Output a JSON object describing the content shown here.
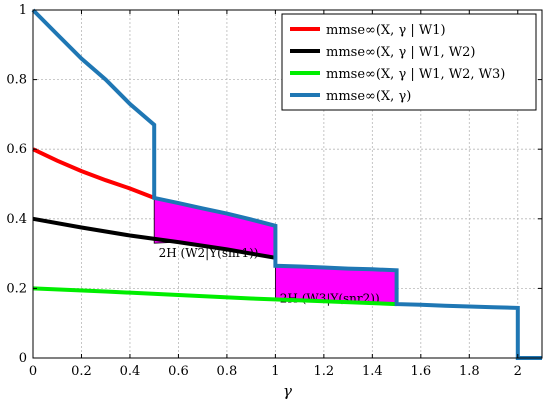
{
  "chart_data": {
    "type": "line",
    "title": "",
    "xlabel": "γ",
    "ylabel": "",
    "xlim": [
      0,
      2.1
    ],
    "ylim": [
      0,
      1
    ],
    "x_ticks": [
      "0",
      "0.2",
      "0.4",
      "0.6",
      "0.8",
      "1",
      "1.2",
      "1.4",
      "1.6",
      "1.8",
      "2"
    ],
    "y_ticks": [
      "0",
      "0.2",
      "0.4",
      "0.6",
      "0.8",
      "1"
    ],
    "grid": true,
    "legend_position": "top-right",
    "series": [
      {
        "name": "mmse∞(X, γ | W1)",
        "color": "#ff0000",
        "points": [
          [
            0,
            0.6
          ],
          [
            0.1,
            0.567
          ],
          [
            0.2,
            0.537
          ],
          [
            0.3,
            0.511
          ],
          [
            0.4,
            0.487
          ],
          [
            0.5,
            0.46
          ]
        ]
      },
      {
        "name": "mmse∞(X, γ | W1, W2)",
        "color": "#000000",
        "points": [
          [
            0,
            0.4
          ],
          [
            0.2,
            0.375
          ],
          [
            0.4,
            0.352
          ],
          [
            0.6,
            0.333
          ],
          [
            0.8,
            0.312
          ],
          [
            1.0,
            0.288
          ]
        ]
      },
      {
        "name": "mmse∞(X, γ | W1, W2, W3)",
        "color": "#00ee00",
        "points": [
          [
            0,
            0.2
          ],
          [
            0.3,
            0.191
          ],
          [
            0.6,
            0.181
          ],
          [
            0.9,
            0.171
          ],
          [
            1.2,
            0.163
          ],
          [
            1.5,
            0.155
          ]
        ]
      },
      {
        "name": "mmse∞(X, γ)",
        "color": "#1f77b4",
        "points": [
          [
            0,
            1.0
          ],
          [
            0.1,
            0.93
          ],
          [
            0.2,
            0.86
          ],
          [
            0.3,
            0.8
          ],
          [
            0.4,
            0.73
          ],
          [
            0.5,
            0.67
          ],
          [
            0.5,
            0.46
          ],
          [
            0.6,
            0.445
          ],
          [
            0.7,
            0.43
          ],
          [
            0.8,
            0.415
          ],
          [
            0.9,
            0.398
          ],
          [
            1.0,
            0.38
          ],
          [
            1.0,
            0.265
          ],
          [
            1.1,
            0.263
          ],
          [
            1.2,
            0.26
          ],
          [
            1.3,
            0.257
          ],
          [
            1.4,
            0.255
          ],
          [
            1.5,
            0.252
          ],
          [
            1.5,
            0.155
          ],
          [
            1.6,
            0.153
          ],
          [
            1.7,
            0.15
          ],
          [
            1.8,
            0.148
          ],
          [
            1.9,
            0.146
          ],
          [
            2.0,
            0.144
          ],
          [
            2.0,
            0.0
          ],
          [
            2.1,
            0.0
          ]
        ]
      }
    ],
    "regions": [
      {
        "label": "2H (W2|Y(snr1))",
        "color": "#ff00ff",
        "upper": [
          [
            0.5,
            0.46
          ],
          [
            0.6,
            0.445
          ],
          [
            0.7,
            0.43
          ],
          [
            0.8,
            0.415
          ],
          [
            0.9,
            0.398
          ],
          [
            1.0,
            0.38
          ]
        ],
        "lower": [
          [
            0.5,
            0.33
          ],
          [
            0.6,
            0.333
          ],
          [
            0.8,
            0.312
          ],
          [
            1.0,
            0.288
          ]
        ],
        "label_at": [
          0.51,
          0.29
        ]
      },
      {
        "label": "2H (W3|Y(snr2))",
        "color": "#ff00ff",
        "upper": [
          [
            1.0,
            0.265
          ],
          [
            1.2,
            0.26
          ],
          [
            1.4,
            0.255
          ],
          [
            1.5,
            0.252
          ]
        ],
        "lower": [
          [
            1.0,
            0.171
          ],
          [
            1.2,
            0.163
          ],
          [
            1.5,
            0.155
          ]
        ],
        "label_at": [
          1.01,
          0.16
        ]
      }
    ]
  }
}
